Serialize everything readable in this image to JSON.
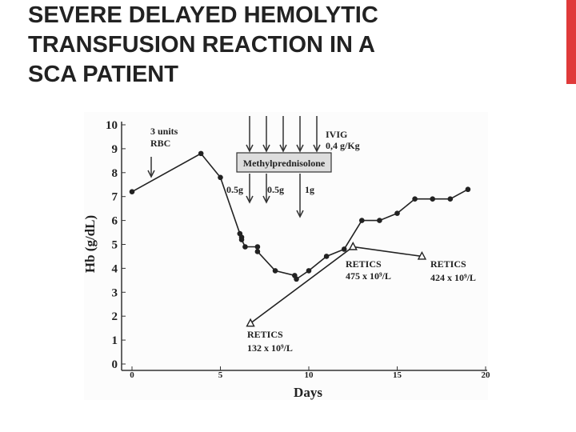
{
  "page_title": [
    "SEVERE DELAYED HEMOLYTIC",
    "TRANSFUSION REACTION IN A",
    "SCA PATIENT"
  ],
  "chart_data": {
    "type": "line",
    "xlabel": "Days",
    "ylabel": "Hb (g/dL)",
    "xlim": [
      0,
      20
    ],
    "xticks": [
      0,
      5,
      10,
      15,
      20
    ],
    "ylim": [
      0,
      10
    ],
    "yticks": [
      0,
      1,
      2,
      3,
      4,
      5,
      6,
      7,
      8,
      9,
      10
    ],
    "series": [
      {
        "color": "#222222",
        "marker": "circle",
        "x": [
          0,
          3.9,
          5.0,
          6.1,
          6.2,
          6.2,
          6.4,
          7.1,
          7.1,
          8.1,
          9.2,
          9.3,
          10.0,
          11.0,
          12.0,
          13.0,
          14.0,
          15.0,
          16.0,
          17.0,
          18.0,
          19.0
        ],
        "values": [
          7.2,
          8.8,
          7.8,
          5.45,
          5.3,
          5.2,
          4.9,
          4.9,
          4.7,
          3.9,
          3.7,
          3.55,
          3.9,
          4.5,
          4.8,
          6.0,
          6.0,
          6.3,
          6.9,
          6.9,
          6.9,
          7.3
        ]
      },
      {
        "color": "#222222",
        "marker": "triangle",
        "x": [
          6.7,
          12.5,
          16.4
        ],
        "values": [
          1.7,
          4.9,
          4.5
        ]
      }
    ],
    "annotations": [
      "3 units",
      "RBC",
      "IVIG",
      "0,4 g/Kg",
      "Methylprednisolone",
      "0.5g",
      "0.5g",
      "1g",
      "RETICS",
      "475 x 10⁹/L",
      "RETICS",
      "424 x 10⁹/L",
      "RETICS",
      "132 x 10⁹/L"
    ]
  }
}
